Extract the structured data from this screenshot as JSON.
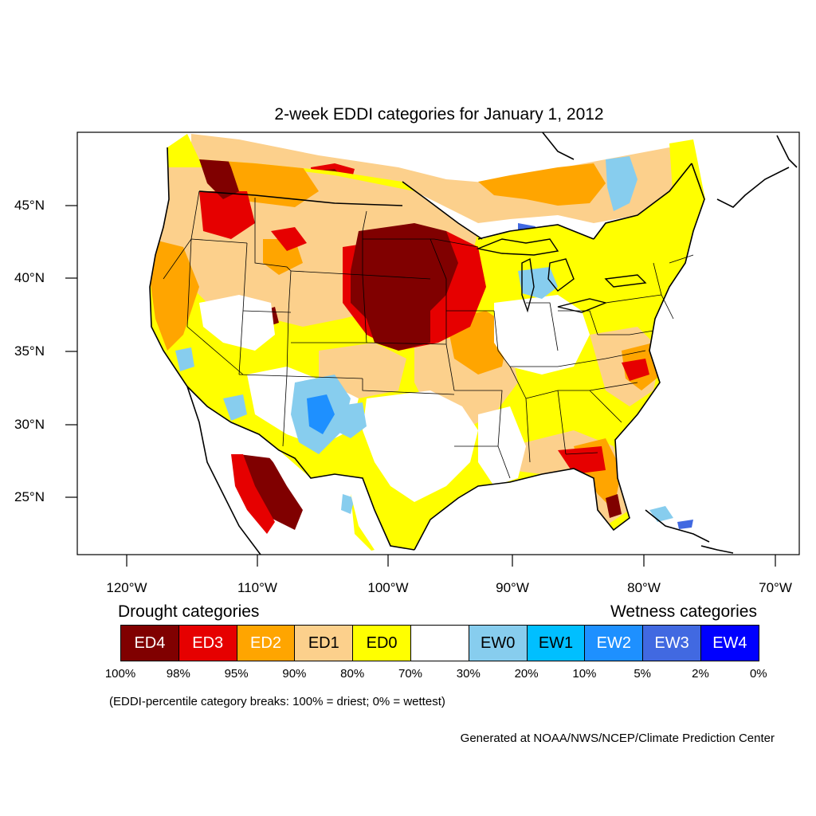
{
  "title": "2-week EDDI categories for January 1, 2012",
  "axes": {
    "lat_labels": [
      "45°N",
      "40°N",
      "35°N",
      "30°N",
      "25°N"
    ],
    "lon_labels": [
      "120°W",
      "110°W",
      "100°W",
      "90°W",
      "80°W",
      "70°W"
    ]
  },
  "legend": {
    "drought_heading": "Drought categories",
    "wetness_heading": "Wetness categories",
    "categories": [
      {
        "label": "ED4",
        "color": "#800000",
        "text_color": "#ffffff"
      },
      {
        "label": "ED3",
        "color": "#e60000",
        "text_color": "#ffffff"
      },
      {
        "label": "ED2",
        "color": "#ffa500",
        "text_color": "#ffffff"
      },
      {
        "label": "ED1",
        "color": "#fcd08c",
        "text_color": "#000000"
      },
      {
        "label": "ED0",
        "color": "#ffff00",
        "text_color": "#000000"
      },
      {
        "label": "",
        "color": "#ffffff",
        "text_color": "#000000"
      },
      {
        "label": "EW0",
        "color": "#87cdee",
        "text_color": "#000000"
      },
      {
        "label": "EW1",
        "color": "#00bfff",
        "text_color": "#000000"
      },
      {
        "label": "EW2",
        "color": "#1e90ff",
        "text_color": "#ffffff"
      },
      {
        "label": "EW3",
        "color": "#4169e1",
        "text_color": "#ffffff"
      },
      {
        "label": "EW4",
        "color": "#0000ff",
        "text_color": "#ffffff"
      }
    ],
    "percentiles": [
      "100%",
      "98%",
      "95%",
      "90%",
      "80%",
      "70%",
      "30%",
      "20%",
      "10%",
      "5%",
      "2%",
      "0%"
    ],
    "note": "(EDDI-percentile category breaks: 100% = driest; 0% = wettest)"
  },
  "credit": "Generated at NOAA/NWS/NCEP/Climate Prediction Center"
}
